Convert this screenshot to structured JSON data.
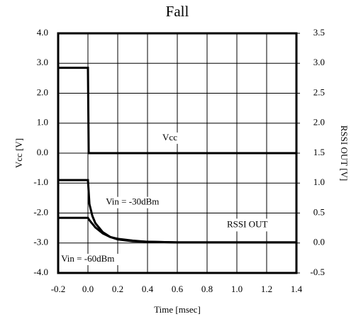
{
  "chart_data": {
    "type": "line",
    "title": "Fall",
    "xlabel": "Time [msec]",
    "ylabel": "Vcc [V]",
    "y2label": "RSSI OUT [V]",
    "xlim": [
      -0.2,
      1.4
    ],
    "xticks": [
      -0.2,
      {
        "value": 0,
        "label": "0.0"
      },
      0.2,
      0.4,
      0.6,
      0.8,
      {
        "value": 1,
        "label": "1.0"
      },
      1.2,
      1.4
    ],
    "ylim": [
      -4,
      4
    ],
    "yticks": [
      {
        "value": -4,
        "label": "-4.0"
      },
      {
        "value": -3,
        "label": "-3.0"
      },
      {
        "value": -2,
        "label": "-2.0"
      },
      {
        "value": -1,
        "label": "-1.0"
      },
      {
        "value": 0,
        "label": "0.0"
      },
      {
        "value": 1,
        "label": "1.0"
      },
      {
        "value": 2,
        "label": "2.0"
      },
      {
        "value": 3,
        "label": "3.0"
      },
      {
        "value": 4,
        "label": "4.0"
      }
    ],
    "y2lim": [
      -0.5,
      3.5
    ],
    "y2ticks": [
      -0.5,
      {
        "value": 0,
        "label": "0.0"
      },
      0.5,
      {
        "value": 1,
        "label": "1.0"
      },
      1.5,
      {
        "value": 2,
        "label": "2.0"
      },
      2.5,
      {
        "value": 3,
        "label": "3.0"
      },
      3.5
    ],
    "grid": true,
    "series": [
      {
        "name": "Vcc",
        "color": "#000000",
        "x": [
          -0.2,
          0,
          0.005,
          0.2,
          0.6,
          1.0,
          1.4
        ],
        "values": [
          2.85,
          2.85,
          0,
          0,
          0,
          0,
          0
        ]
      },
      {
        "name": "Vin = -30dBm",
        "color": "#000000",
        "axis": "y2",
        "x": [
          -0.2,
          0,
          0.01,
          0.03,
          0.05,
          0.1,
          0.15,
          0.2,
          0.3,
          0.4,
          0.6,
          1.0,
          1.4
        ],
        "values": [
          1.05,
          1.05,
          0.65,
          0.45,
          0.33,
          0.18,
          0.1,
          0.06,
          0.03,
          0.02,
          0.01,
          0.01,
          0.01
        ]
      },
      {
        "name": "Vin = -60dBm",
        "color": "#000000",
        "axis": "y2",
        "x": [
          -0.2,
          0,
          0.01,
          0.03,
          0.05,
          0.1,
          0.15,
          0.2,
          0.3,
          0.4,
          0.6,
          1.0,
          1.4
        ],
        "values": [
          0.42,
          0.42,
          0.38,
          0.32,
          0.26,
          0.16,
          0.1,
          0.07,
          0.04,
          0.02,
          0.01,
          0.01,
          0.01
        ]
      }
    ],
    "annotations": [
      "RSSI OUT"
    ]
  }
}
